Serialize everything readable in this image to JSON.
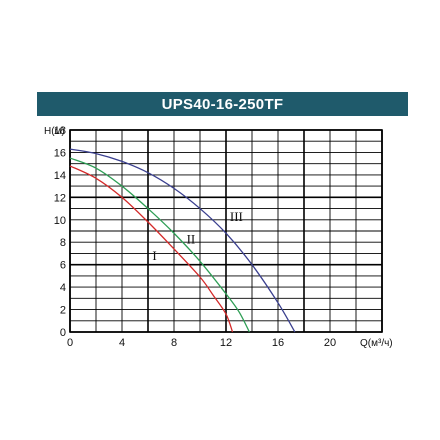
{
  "header": {
    "title": "UPS40-16-250TF",
    "color": "#1f5a6b"
  },
  "chart_data": {
    "type": "line",
    "title": "UPS40-16-250TF",
    "ylabel": "H(м)",
    "xlabel": "Q(м³/ч)",
    "xlim": [
      0,
      24
    ],
    "ylim": [
      0,
      18
    ],
    "x_ticks": [
      "0",
      "4",
      "8",
      "12",
      "16",
      "20"
    ],
    "y_ticks": [
      "0",
      "2",
      "4",
      "6",
      "8",
      "10",
      "12",
      "14",
      "16",
      "18"
    ],
    "grid": true,
    "series": [
      {
        "name": "I",
        "color": "#d42a2a",
        "points": [
          [
            0,
            14.8
          ],
          [
            2,
            13.7
          ],
          [
            4,
            12.0
          ],
          [
            6,
            9.8
          ],
          [
            8,
            7.4
          ],
          [
            10,
            4.9
          ],
          [
            11,
            3.3
          ],
          [
            12,
            1.6
          ],
          [
            12.5,
            0
          ]
        ]
      },
      {
        "name": "II",
        "color": "#2e9e55",
        "points": [
          [
            0,
            15.5
          ],
          [
            2,
            14.6
          ],
          [
            4,
            13.0
          ],
          [
            6,
            11.0
          ],
          [
            8,
            8.8
          ],
          [
            10,
            6.3
          ],
          [
            12,
            3.4
          ],
          [
            13,
            1.8
          ],
          [
            13.8,
            0
          ]
        ]
      },
      {
        "name": "III",
        "color": "#3a3f8f",
        "points": [
          [
            0,
            16.3
          ],
          [
            2,
            15.9
          ],
          [
            4,
            15.2
          ],
          [
            6,
            14.2
          ],
          [
            8,
            12.8
          ],
          [
            10,
            11.0
          ],
          [
            12,
            8.8
          ],
          [
            14,
            6.0
          ],
          [
            16,
            2.6
          ],
          [
            17.3,
            0
          ]
        ]
      }
    ],
    "annotations": [
      {
        "text": "I",
        "x": 6.5,
        "y": 6.4
      },
      {
        "text": "II",
        "x": 9.3,
        "y": 7.9
      },
      {
        "text": "III",
        "x": 12.8,
        "y": 9.9
      }
    ]
  }
}
